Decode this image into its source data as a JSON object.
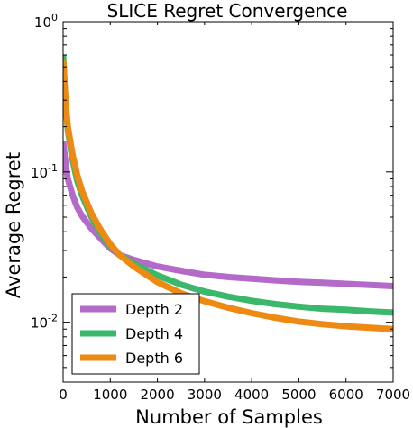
{
  "chart_data": {
    "type": "line",
    "title": "SLICE Regret Convergence",
    "xlabel": "Number of Samples",
    "ylabel": "Average Regret",
    "xlim": [
      0,
      7000
    ],
    "ylim": [
      0.004,
      1
    ],
    "yscale": "log",
    "xticks": [
      "0",
      "1000",
      "2000",
      "3000",
      "4000",
      "5000",
      "6000",
      "7000"
    ],
    "yticks": [
      {
        "base": "10",
        "exp": "0",
        "value": 1
      },
      {
        "base": "10",
        "exp": "-1",
        "value": 0.1
      },
      {
        "base": "10",
        "exp": "-2",
        "value": 0.01
      }
    ],
    "grid": false,
    "legend_position": "lower-left",
    "series": [
      {
        "name": "Depth 2",
        "color": "#b36ac9",
        "x": [
          0,
          50,
          100,
          200,
          300,
          400,
          600,
          800,
          1000,
          1200,
          1500,
          2000,
          2500,
          3000,
          3500,
          4000,
          4500,
          5000,
          5500,
          6000,
          6500,
          7000
        ],
        "y": [
          0.16,
          0.115,
          0.09,
          0.07,
          0.058,
          0.051,
          0.042,
          0.036,
          0.031,
          0.028,
          0.026,
          0.0235,
          0.022,
          0.0207,
          0.02,
          0.0195,
          0.019,
          0.0186,
          0.0183,
          0.018,
          0.0177,
          0.0174
        ]
      },
      {
        "name": "Depth 4",
        "color": "#3bb86b",
        "x": [
          0,
          50,
          100,
          200,
          300,
          400,
          600,
          800,
          1000,
          1200,
          1500,
          2000,
          2500,
          3000,
          3500,
          4000,
          4500,
          5000,
          5500,
          6000,
          6500,
          7000
        ],
        "y": [
          0.6,
          0.3,
          0.19,
          0.12,
          0.087,
          0.07,
          0.05,
          0.039,
          0.032,
          0.028,
          0.0245,
          0.0205,
          0.0178,
          0.016,
          0.0148,
          0.0139,
          0.0132,
          0.0127,
          0.0123,
          0.0121,
          0.0118,
          0.0116
        ]
      },
      {
        "name": "Depth 6",
        "color": "#ee8a12",
        "x": [
          0,
          50,
          100,
          200,
          300,
          400,
          600,
          800,
          1000,
          1200,
          1500,
          2000,
          2500,
          3000,
          3500,
          4000,
          4500,
          5000,
          5500,
          6000,
          6500,
          7000
        ],
        "y": [
          0.55,
          0.3,
          0.2,
          0.13,
          0.095,
          0.075,
          0.053,
          0.041,
          0.033,
          0.028,
          0.0235,
          0.0185,
          0.0156,
          0.0138,
          0.0125,
          0.0115,
          0.0107,
          0.0101,
          0.0097,
          0.0094,
          0.0092,
          0.009
        ]
      }
    ]
  }
}
